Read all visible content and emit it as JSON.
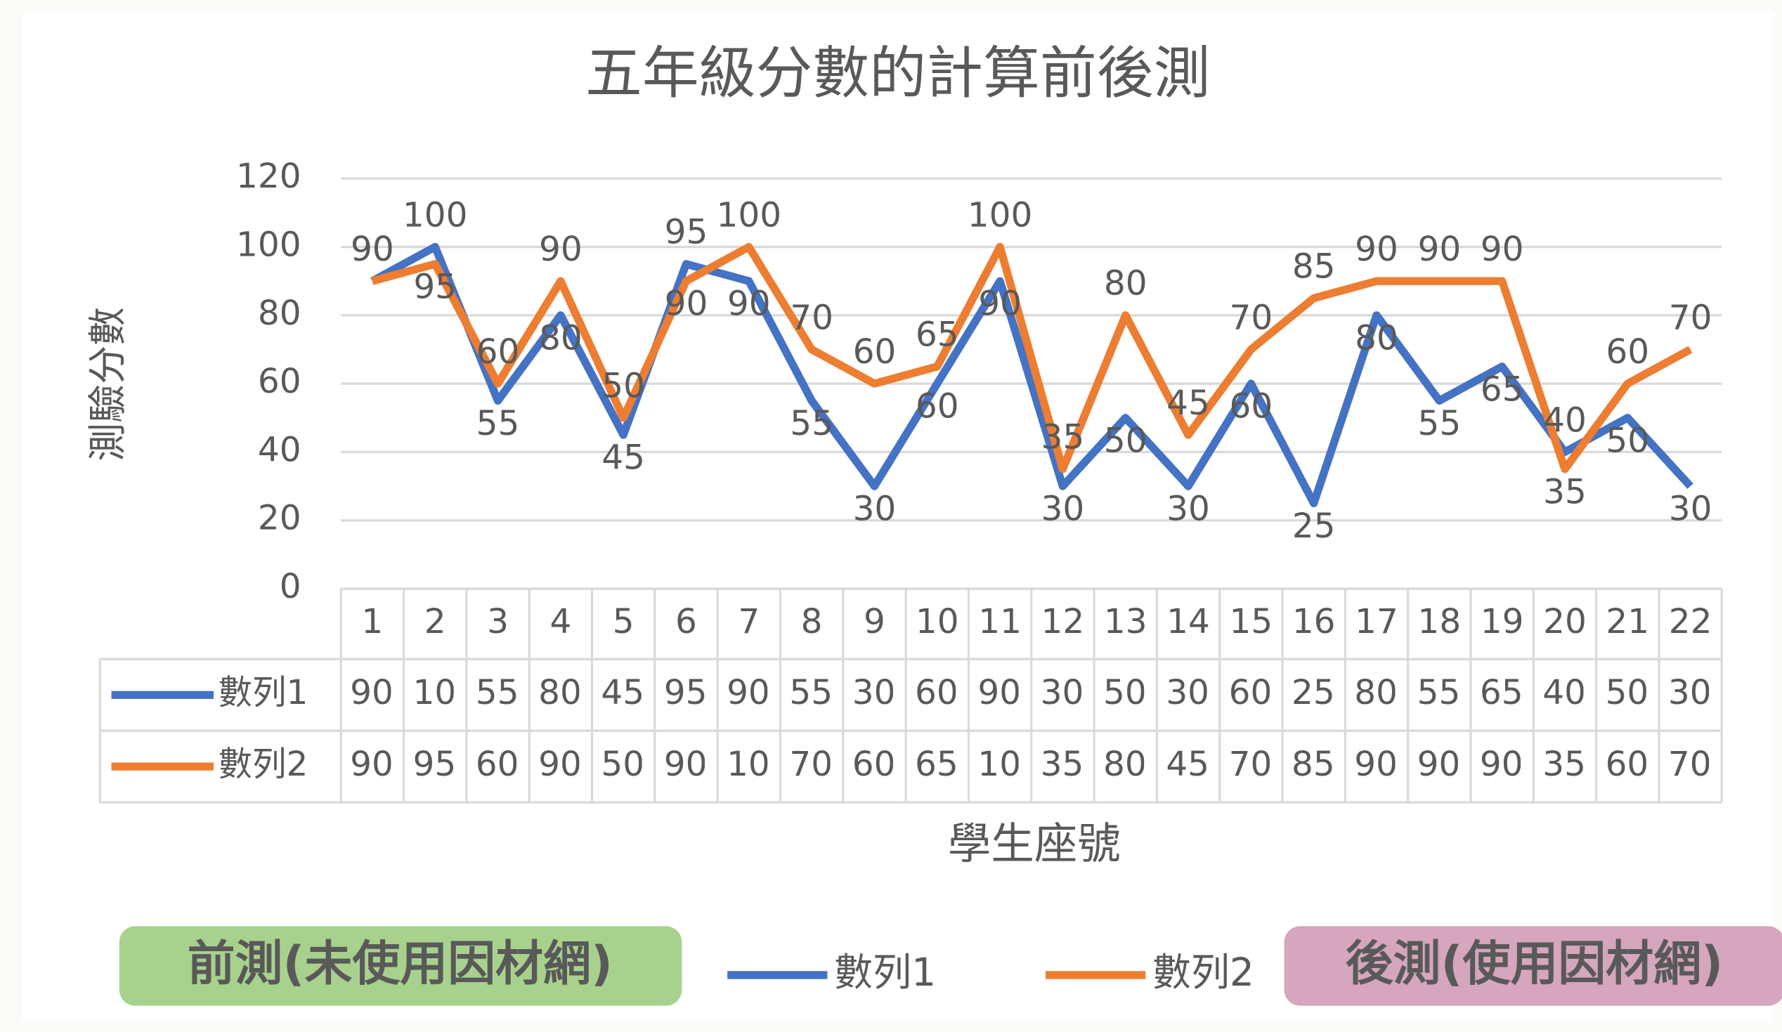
{
  "chart_data": {
    "type": "line",
    "title": "五年級分數的計算前後測",
    "y_label": "測驗分數",
    "x_label": "學生座號",
    "categories": [
      "1",
      "2",
      "3",
      "4",
      "5",
      "6",
      "7",
      "8",
      "9",
      "10",
      "11",
      "12",
      "13",
      "14",
      "15",
      "16",
      "17",
      "18",
      "19",
      "20",
      "21",
      "22"
    ],
    "series": [
      {
        "name": "數列1",
        "color": "#4472c4",
        "values": [
          90,
          100,
          55,
          80,
          45,
          95,
          90,
          55,
          30,
          60,
          90,
          30,
          50,
          30,
          60,
          25,
          80,
          55,
          65,
          40,
          50,
          30
        ]
      },
      {
        "name": "數列2",
        "color": "#ed7d31",
        "values": [
          90,
          95,
          60,
          90,
          50,
          90,
          100,
          70,
          60,
          65,
          100,
          35,
          80,
          45,
          70,
          85,
          90,
          90,
          90,
          35,
          60,
          70
        ]
      }
    ],
    "ylim": [
      0,
      120
    ],
    "yticks": [
      0,
      20,
      40,
      60,
      80,
      100,
      120
    ],
    "grid": true,
    "annotations": [
      "前測(未使用因材網)",
      "後測(使用因材網)"
    ]
  }
}
